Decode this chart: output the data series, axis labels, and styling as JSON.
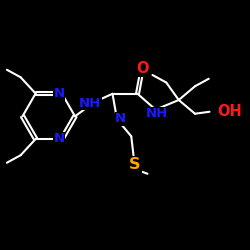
{
  "bg_color": "#000000",
  "bond_color": "#ffffff",
  "N_color": "#1a1aff",
  "O_color": "#ff1a1a",
  "S_color": "#ffa500",
  "bond_lw": 1.5,
  "font_size": 9.5,
  "doff": 0.055,
  "figsize": [
    2.5,
    2.5
  ],
  "dpi": 100,
  "xlim": [
    0,
    10
  ],
  "ylim": [
    0,
    10
  ]
}
